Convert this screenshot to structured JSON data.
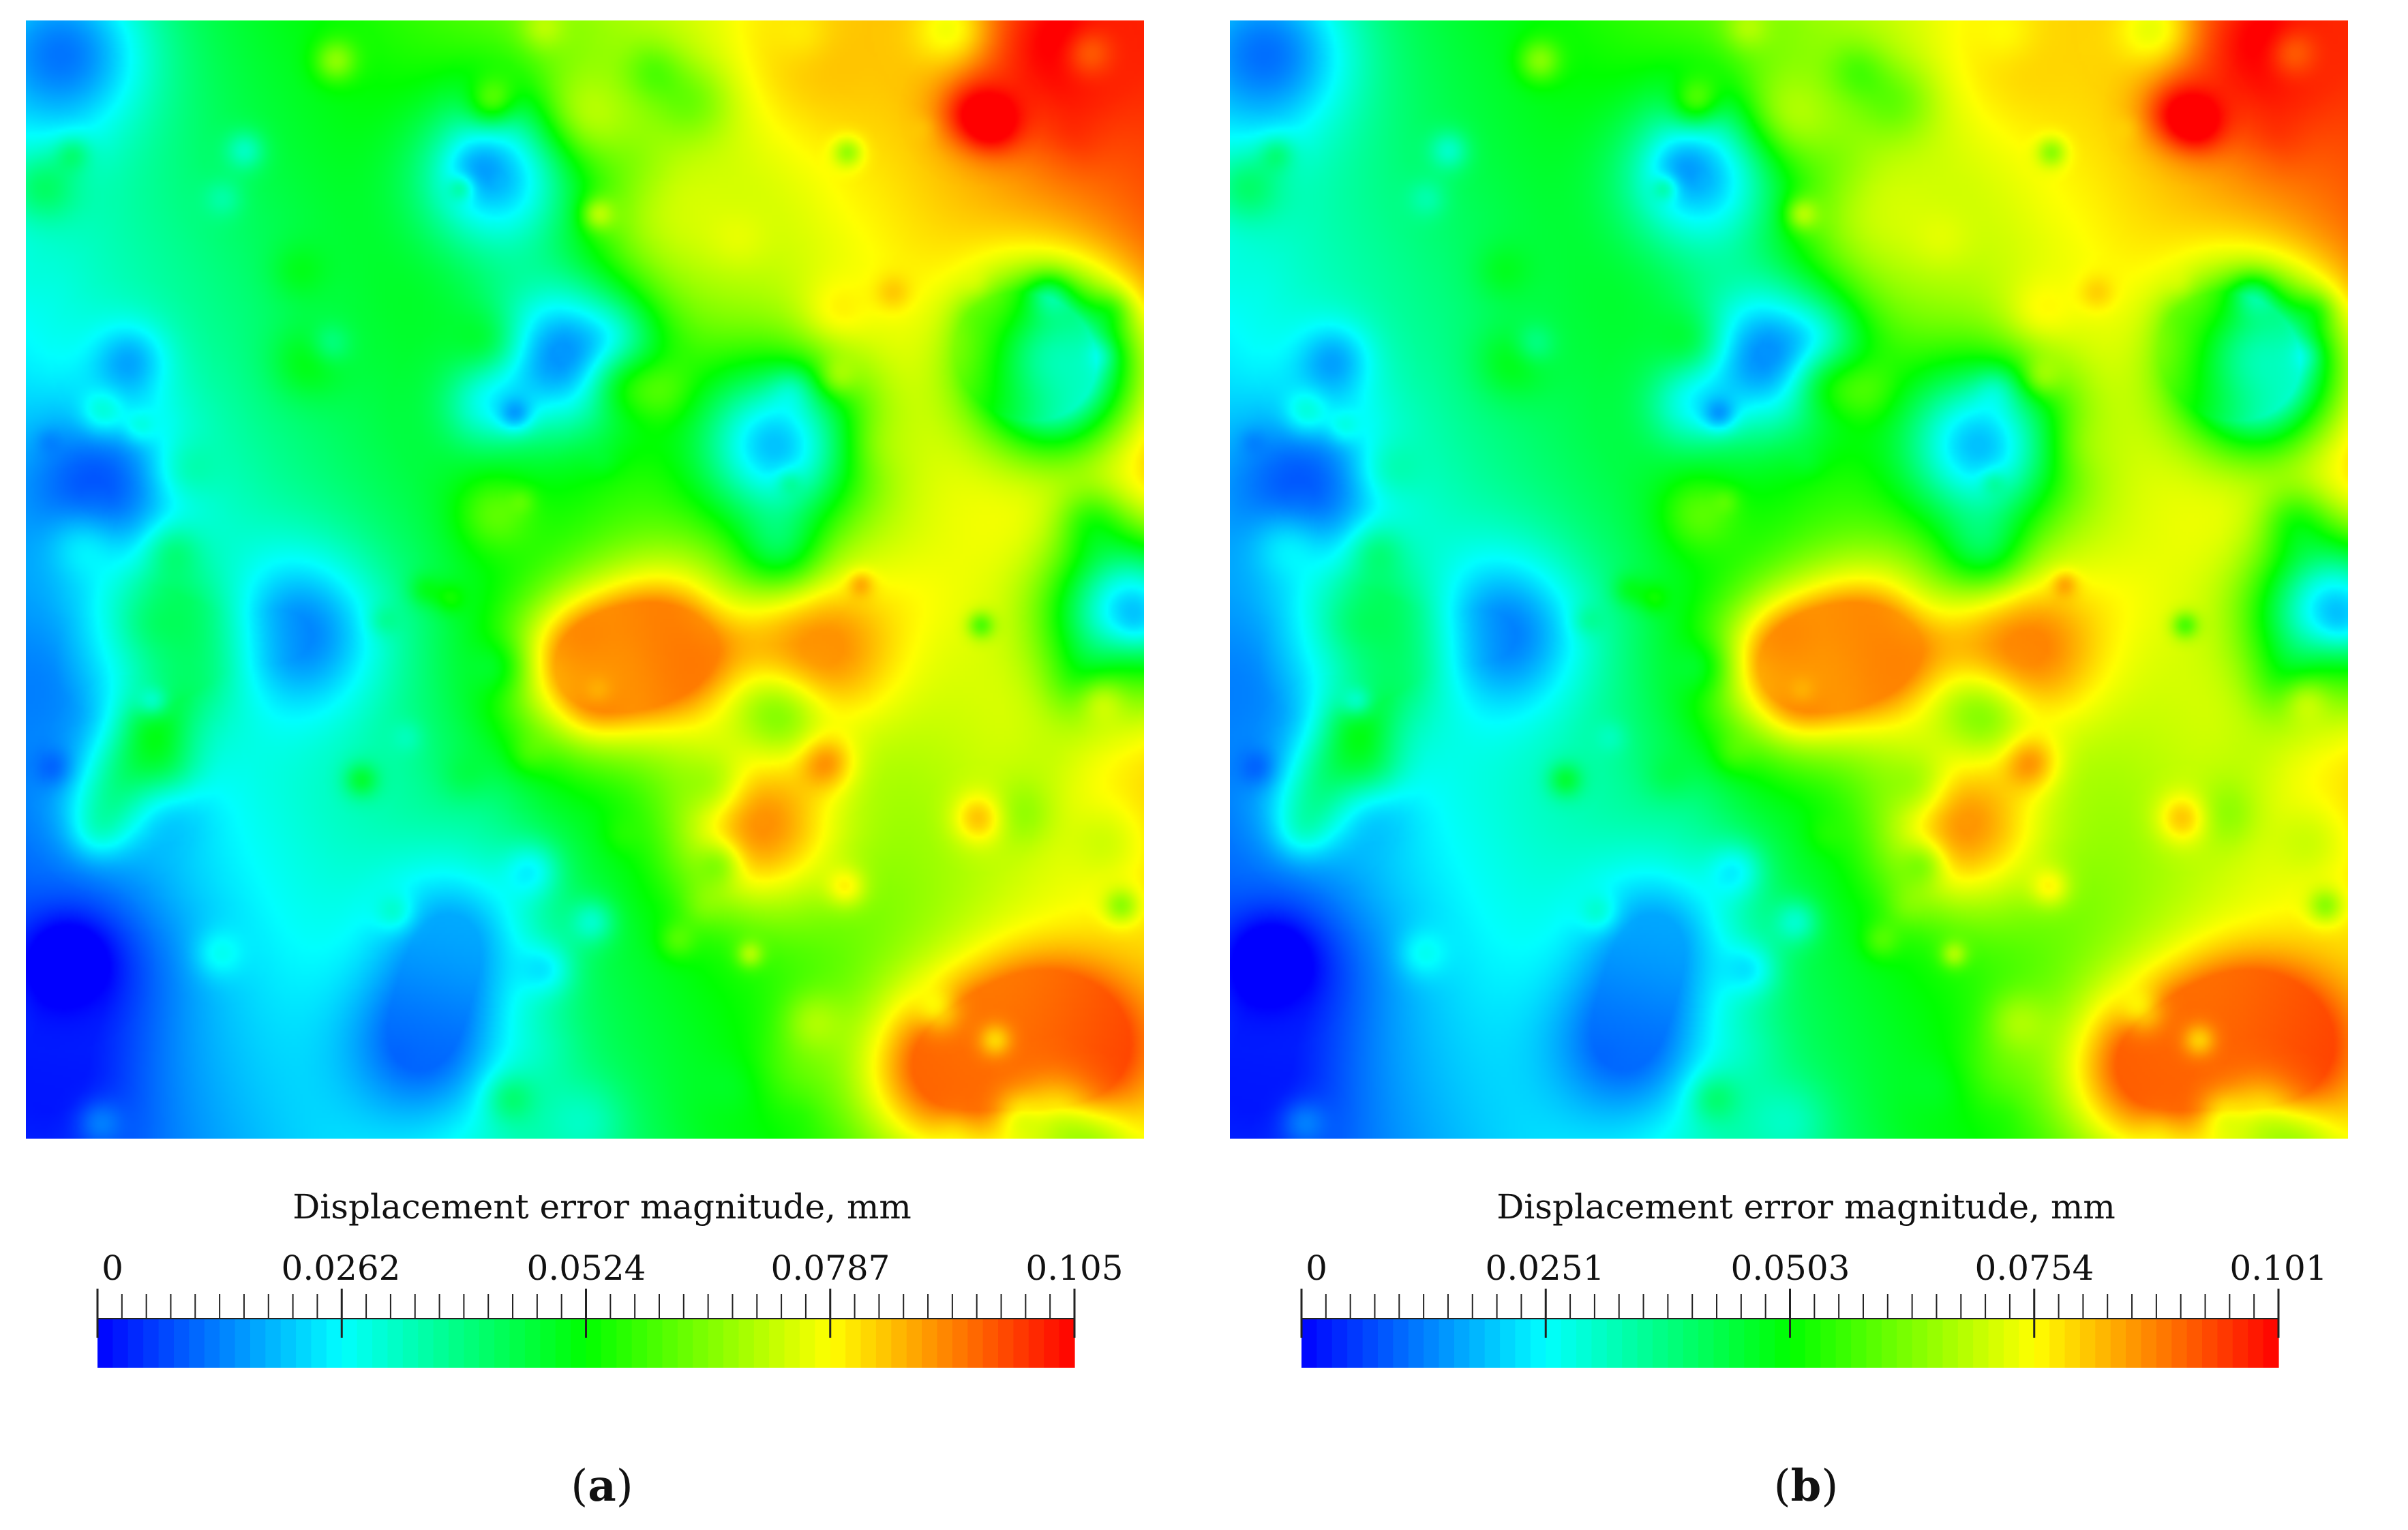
{
  "chart_data": [
    {
      "type": "heatmap",
      "panel_label": "a",
      "colorbar": {
        "title": "Displacement error magnitude, mm",
        "range": [
          0,
          0.105
        ],
        "tick_labels": [
          "0",
          "0.0262",
          "0.0524",
          "0.0787",
          "0.105"
        ],
        "tick_values": [
          0,
          0.0262,
          0.0524,
          0.0787,
          0.105
        ],
        "colormap": [
          "#0000ff",
          "#00ffff",
          "#00ff00",
          "#ffff00",
          "#ff0000"
        ]
      },
      "field": {
        "base_corners": {
          "top_left": 0.035,
          "top_right": 0.1,
          "bottom_left": 0.005,
          "bottom_right": 0.075
        },
        "hotspots": [
          {
            "u": 0.93,
            "v": 0.03,
            "value": 0.105
          },
          {
            "u": 0.72,
            "v": 0.03,
            "value": 0.085
          },
          {
            "u": 0.58,
            "v": 0.56,
            "value": 0.095
          },
          {
            "u": 0.72,
            "v": 0.56,
            "value": 0.09
          },
          {
            "u": 0.82,
            "v": 0.94,
            "value": 0.095
          },
          {
            "u": 0.9,
            "v": 0.9,
            "value": 0.09
          },
          {
            "u": 0.95,
            "v": 0.92,
            "value": 0.1
          },
          {
            "u": 0.5,
            "v": 0.58,
            "value": 0.085
          },
          {
            "u": 0.66,
            "v": 0.72,
            "value": 0.09
          },
          {
            "u": 0.87,
            "v": 0.29,
            "value": 0.08
          },
          {
            "u": 0.12,
            "v": 0.56,
            "value": 0.06
          },
          {
            "u": 0.59,
            "v": 0.17,
            "value": 0.075
          },
          {
            "u": 0.06,
            "v": 0.58,
            "value": 0.004
          },
          {
            "u": 0.05,
            "v": 0.85,
            "value": 0.004
          },
          {
            "u": 0.02,
            "v": 0.96,
            "value": 0.002
          },
          {
            "u": 0.35,
            "v": 0.92,
            "value": 0.01
          },
          {
            "u": 0.38,
            "v": 0.82,
            "value": 0.018
          },
          {
            "u": 0.48,
            "v": 0.3,
            "value": 0.015
          },
          {
            "u": 0.42,
            "v": 0.14,
            "value": 0.02
          },
          {
            "u": 0.24,
            "v": 0.55,
            "value": 0.012
          },
          {
            "u": 0.03,
            "v": 0.03,
            "value": 0.012
          },
          {
            "u": 0.92,
            "v": 0.31,
            "value": 0.02
          },
          {
            "u": 0.99,
            "v": 0.53,
            "value": 0.02
          },
          {
            "u": 0.06,
            "v": 0.42,
            "value": 0.008
          },
          {
            "u": 0.67,
            "v": 0.38,
            "value": 0.02
          }
        ]
      }
    },
    {
      "type": "heatmap",
      "panel_label": "b",
      "colorbar": {
        "title": "Displacement error magnitude, mm",
        "range": [
          0,
          0.101
        ],
        "tick_labels": [
          "0",
          "0.0251",
          "0.0503",
          "0.0754",
          "0.101"
        ],
        "tick_values": [
          0,
          0.0251,
          0.0503,
          0.0754,
          0.101
        ],
        "colormap": [
          "#0000ff",
          "#00ffff",
          "#00ff00",
          "#ffff00",
          "#ff0000"
        ]
      },
      "field": {
        "base_corners": {
          "top_left": 0.033,
          "top_right": 0.095,
          "bottom_left": 0.005,
          "bottom_right": 0.072
        },
        "hotspots": [
          {
            "u": 0.93,
            "v": 0.03,
            "value": 0.101
          },
          {
            "u": 0.72,
            "v": 0.03,
            "value": 0.08
          },
          {
            "u": 0.58,
            "v": 0.56,
            "value": 0.09
          },
          {
            "u": 0.72,
            "v": 0.56,
            "value": 0.088
          },
          {
            "u": 0.82,
            "v": 0.94,
            "value": 0.092
          },
          {
            "u": 0.9,
            "v": 0.9,
            "value": 0.088
          },
          {
            "u": 0.95,
            "v": 0.92,
            "value": 0.096
          },
          {
            "u": 0.5,
            "v": 0.58,
            "value": 0.082
          },
          {
            "u": 0.66,
            "v": 0.72,
            "value": 0.086
          },
          {
            "u": 0.87,
            "v": 0.29,
            "value": 0.077
          },
          {
            "u": 0.12,
            "v": 0.56,
            "value": 0.058
          },
          {
            "u": 0.59,
            "v": 0.17,
            "value": 0.072
          },
          {
            "u": 0.06,
            "v": 0.58,
            "value": 0.004
          },
          {
            "u": 0.05,
            "v": 0.85,
            "value": 0.004
          },
          {
            "u": 0.02,
            "v": 0.96,
            "value": 0.002
          },
          {
            "u": 0.35,
            "v": 0.92,
            "value": 0.01
          },
          {
            "u": 0.38,
            "v": 0.82,
            "value": 0.017
          },
          {
            "u": 0.48,
            "v": 0.3,
            "value": 0.014
          },
          {
            "u": 0.42,
            "v": 0.14,
            "value": 0.019
          },
          {
            "u": 0.24,
            "v": 0.55,
            "value": 0.011
          },
          {
            "u": 0.03,
            "v": 0.03,
            "value": 0.011
          },
          {
            "u": 0.92,
            "v": 0.31,
            "value": 0.019
          },
          {
            "u": 0.99,
            "v": 0.53,
            "value": 0.019
          },
          {
            "u": 0.06,
            "v": 0.42,
            "value": 0.008
          },
          {
            "u": 0.67,
            "v": 0.38,
            "value": 0.019
          }
        ]
      }
    }
  ]
}
